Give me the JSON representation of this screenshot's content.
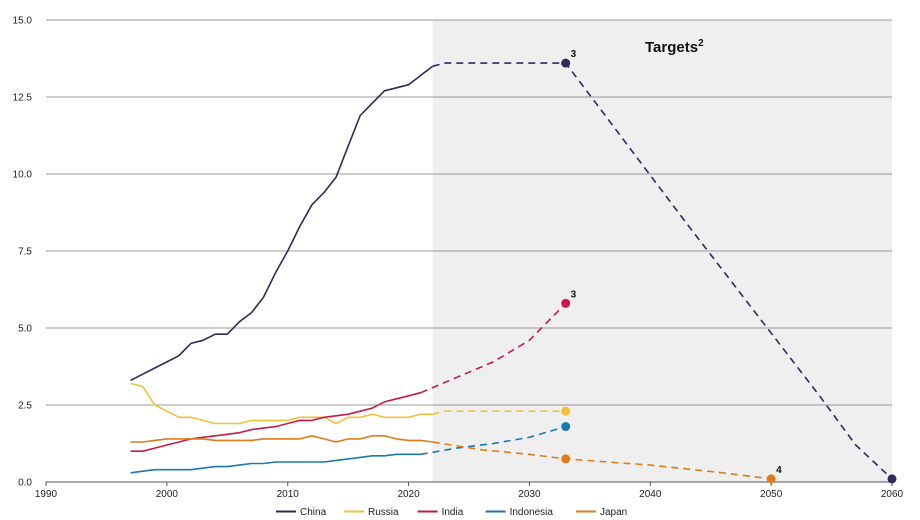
{
  "chart_data": {
    "type": "line",
    "xlim": [
      1990,
      2060
    ],
    "ylim": [
      0,
      15
    ],
    "x_ticks": [
      1990,
      2000,
      2010,
      2020,
      2030,
      2040,
      2050,
      2060
    ],
    "x_tick_labels": [
      "1990",
      "2000",
      "2010",
      "2020",
      "2030",
      "2040",
      "2050",
      "2060"
    ],
    "y_ticks": [
      0,
      2.5,
      5,
      7.5,
      10,
      12.5,
      15
    ],
    "y_tick_labels": [
      "0.0",
      "2.5",
      "5.0",
      "7.5",
      "10.0",
      "12.5",
      "15.0"
    ],
    "grid": "horizontal",
    "legend_position": "bottom",
    "targets_region": {
      "x_start": 2022,
      "x_end": 2060,
      "label": "Targets",
      "label_superscript": "2",
      "shade": "#efefef"
    },
    "series": [
      {
        "name": "China",
        "color": "#2e2a5a",
        "historical": [
          [
            1997,
            3.3
          ],
          [
            1998,
            3.5
          ],
          [
            1999,
            3.7
          ],
          [
            2000,
            3.9
          ],
          [
            2001,
            4.1
          ],
          [
            2002,
            4.5
          ],
          [
            2003,
            4.6
          ],
          [
            2004,
            4.8
          ],
          [
            2005,
            4.8
          ],
          [
            2006,
            5.2
          ],
          [
            2007,
            5.5
          ],
          [
            2008,
            6.0
          ],
          [
            2009,
            6.8
          ],
          [
            2010,
            7.5
          ],
          [
            2011,
            8.3
          ],
          [
            2012,
            9.0
          ],
          [
            2013,
            9.4
          ],
          [
            2014,
            9.9
          ],
          [
            2015,
            10.9
          ],
          [
            2016,
            11.9
          ],
          [
            2017,
            12.3
          ],
          [
            2018,
            12.7
          ],
          [
            2019,
            12.8
          ],
          [
            2020,
            12.9
          ],
          [
            2021,
            13.2
          ],
          [
            2022,
            13.5
          ]
        ],
        "target": [
          [
            2022,
            13.5
          ],
          [
            2023,
            13.6
          ],
          [
            2030,
            13.6
          ],
          [
            2033,
            13.6
          ],
          [
            2043,
            8.4
          ],
          [
            2054,
            2.8
          ],
          [
            2057,
            1.2
          ],
          [
            2060,
            0.1
          ]
        ],
        "markers": [
          {
            "x": 2033,
            "y": 13.6,
            "label": "3"
          },
          {
            "x": 2060,
            "y": 0.1,
            "label": ""
          }
        ]
      },
      {
        "name": "Russia",
        "color": "#f0c23a",
        "historical": [
          [
            1997,
            3.2
          ],
          [
            1998,
            3.1
          ],
          [
            1999,
            2.5
          ],
          [
            2000,
            2.3
          ],
          [
            2001,
            2.1
          ],
          [
            2002,
            2.1
          ],
          [
            2003,
            2.0
          ],
          [
            2004,
            1.9
          ],
          [
            2005,
            1.9
          ],
          [
            2006,
            1.9
          ],
          [
            2007,
            2.0
          ],
          [
            2008,
            2.0
          ],
          [
            2009,
            2.0
          ],
          [
            2010,
            2.0
          ],
          [
            2011,
            2.1
          ],
          [
            2012,
            2.1
          ],
          [
            2013,
            2.1
          ],
          [
            2014,
            1.9
          ],
          [
            2015,
            2.1
          ],
          [
            2016,
            2.1
          ],
          [
            2017,
            2.2
          ],
          [
            2018,
            2.1
          ],
          [
            2019,
            2.1
          ],
          [
            2020,
            2.1
          ],
          [
            2021,
            2.2
          ],
          [
            2022,
            2.2
          ]
        ],
        "target": [
          [
            2022,
            2.2
          ],
          [
            2023,
            2.3
          ],
          [
            2033,
            2.3
          ]
        ],
        "markers": [
          {
            "x": 2033,
            "y": 2.3,
            "label": ""
          }
        ]
      },
      {
        "name": "India",
        "color": "#c8194a",
        "historical": [
          [
            1997,
            1.0
          ],
          [
            1998,
            1.0
          ],
          [
            1999,
            1.1
          ],
          [
            2000,
            1.2
          ],
          [
            2001,
            1.3
          ],
          [
            2002,
            1.4
          ],
          [
            2003,
            1.45
          ],
          [
            2004,
            1.5
          ],
          [
            2005,
            1.55
          ],
          [
            2006,
            1.6
          ],
          [
            2007,
            1.7
          ],
          [
            2008,
            1.75
          ],
          [
            2009,
            1.8
          ],
          [
            2010,
            1.9
          ],
          [
            2011,
            2.0
          ],
          [
            2012,
            2.0
          ],
          [
            2013,
            2.1
          ],
          [
            2014,
            2.15
          ],
          [
            2015,
            2.2
          ],
          [
            2016,
            2.3
          ],
          [
            2017,
            2.4
          ],
          [
            2018,
            2.6
          ],
          [
            2019,
            2.7
          ],
          [
            2020,
            2.8
          ],
          [
            2021,
            2.9
          ]
        ],
        "target": [
          [
            2021,
            2.9
          ],
          [
            2024,
            3.4
          ],
          [
            2027,
            3.9
          ],
          [
            2030,
            4.6
          ],
          [
            2033,
            5.8
          ]
        ],
        "markers": [
          {
            "x": 2033,
            "y": 5.8,
            "label": "3"
          }
        ]
      },
      {
        "name": "Indonesia",
        "color": "#1b78ae",
        "historical": [
          [
            1997,
            0.3
          ],
          [
            1998,
            0.35
          ],
          [
            1999,
            0.4
          ],
          [
            2000,
            0.4
          ],
          [
            2001,
            0.4
          ],
          [
            2002,
            0.4
          ],
          [
            2003,
            0.45
          ],
          [
            2004,
            0.5
          ],
          [
            2005,
            0.5
          ],
          [
            2006,
            0.55
          ],
          [
            2007,
            0.6
          ],
          [
            2008,
            0.6
          ],
          [
            2009,
            0.65
          ],
          [
            2010,
            0.65
          ],
          [
            2011,
            0.65
          ],
          [
            2012,
            0.65
          ],
          [
            2013,
            0.65
          ],
          [
            2014,
            0.7
          ],
          [
            2015,
            0.75
          ],
          [
            2016,
            0.8
          ],
          [
            2017,
            0.85
          ],
          [
            2018,
            0.85
          ],
          [
            2019,
            0.9
          ],
          [
            2020,
            0.9
          ],
          [
            2021,
            0.9
          ]
        ],
        "target": [
          [
            2021,
            0.9
          ],
          [
            2024,
            1.1
          ],
          [
            2027,
            1.25
          ],
          [
            2030,
            1.45
          ],
          [
            2033,
            1.8
          ]
        ],
        "markers": [
          {
            "x": 2033,
            "y": 1.8,
            "label": ""
          }
        ]
      },
      {
        "name": "Japan",
        "color": "#e07b1a",
        "historical": [
          [
            1997,
            1.3
          ],
          [
            1998,
            1.3
          ],
          [
            1999,
            1.35
          ],
          [
            2000,
            1.4
          ],
          [
            2001,
            1.4
          ],
          [
            2002,
            1.4
          ],
          [
            2003,
            1.4
          ],
          [
            2004,
            1.35
          ],
          [
            2005,
            1.35
          ],
          [
            2006,
            1.35
          ],
          [
            2007,
            1.35
          ],
          [
            2008,
            1.4
          ],
          [
            2009,
            1.4
          ],
          [
            2010,
            1.4
          ],
          [
            2011,
            1.4
          ],
          [
            2012,
            1.5
          ],
          [
            2013,
            1.4
          ],
          [
            2014,
            1.3
          ],
          [
            2015,
            1.4
          ],
          [
            2016,
            1.4
          ],
          [
            2017,
            1.5
          ],
          [
            2018,
            1.5
          ],
          [
            2019,
            1.4
          ],
          [
            2020,
            1.35
          ],
          [
            2021,
            1.35
          ],
          [
            2022,
            1.3
          ]
        ],
        "target": [
          [
            2022,
            1.3
          ],
          [
            2026,
            1.05
          ],
          [
            2030,
            0.9
          ],
          [
            2033,
            0.75
          ],
          [
            2040,
            0.55
          ],
          [
            2046,
            0.3
          ],
          [
            2050,
            0.1
          ]
        ],
        "markers": [
          {
            "x": 2033,
            "y": 0.75,
            "label": ""
          },
          {
            "x": 2050,
            "y": 0.1,
            "label": "4"
          }
        ]
      }
    ]
  }
}
